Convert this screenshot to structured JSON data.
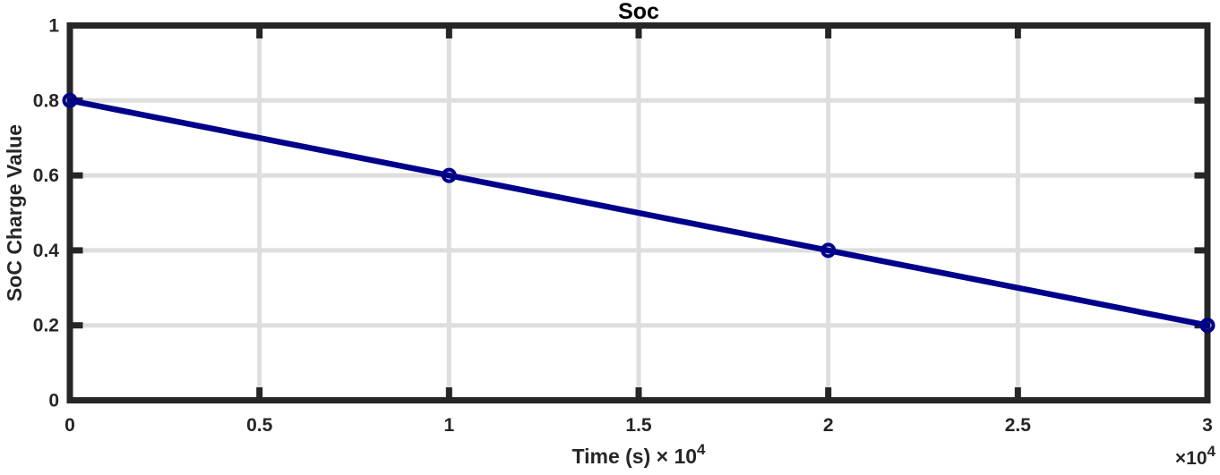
{
  "chart_data": {
    "type": "line",
    "title": "Soc",
    "xlabel": "Time (s) × 10⁴",
    "xlabel_parts": {
      "base": "Time (s) × 10",
      "exp": "4"
    },
    "ylabel": "SoC Charge Value",
    "x_offset_label": "×10⁴",
    "offset_parts": {
      "base": "×10",
      "exp": "4"
    },
    "x": [
      0,
      10000,
      20000,
      30000
    ],
    "y": [
      0.8,
      0.6,
      0.4,
      0.2
    ],
    "xlim": [
      0,
      30000
    ],
    "ylim": [
      0,
      1
    ],
    "xticks": [
      0,
      5000,
      10000,
      15000,
      20000,
      25000,
      30000
    ],
    "xtick_labels": [
      "0",
      "0.5",
      "1",
      "1.5",
      "2",
      "2.5",
      "3"
    ],
    "yticks": [
      0,
      0.2,
      0.4,
      0.6,
      0.8,
      1
    ],
    "ytick_labels": [
      "0",
      "0.2",
      "0.4",
      "0.6",
      "0.8",
      "1"
    ],
    "grid": true,
    "legend_position": "none",
    "marker": "circle",
    "line_color": "#00008B",
    "axis_color": "#262626",
    "grid_color": "#DEDEDE"
  }
}
